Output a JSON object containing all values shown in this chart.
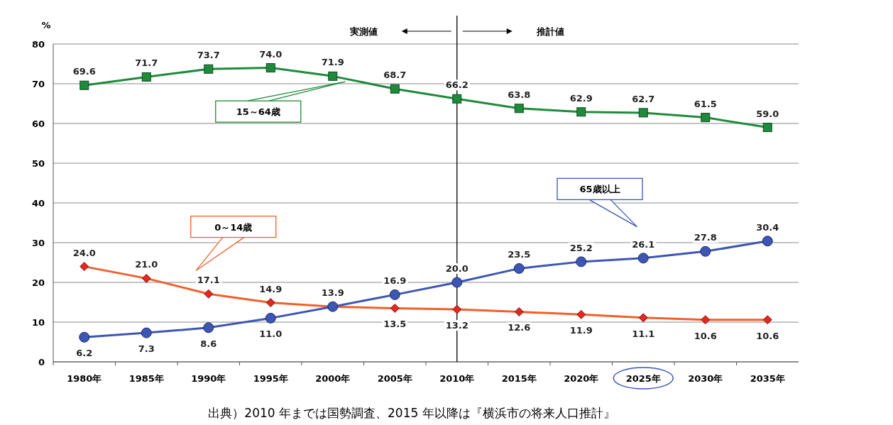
{
  "chart_data": {
    "type": "line",
    "ylabel": "%",
    "categories": [
      "1980年",
      "1985年",
      "1990年",
      "1995年",
      "2000年",
      "2005年",
      "2010年",
      "2015年",
      "2020年",
      "2025年",
      "2030年",
      "2035年"
    ],
    "ylim": [
      0,
      80
    ],
    "yticks": [
      0,
      10,
      20,
      30,
      40,
      50,
      60,
      70,
      80
    ],
    "grid": "y",
    "series": [
      {
        "name": "15～64歳",
        "color": "#1f8a3c",
        "marker": "square",
        "values": [
          69.6,
          71.7,
          73.7,
          74.0,
          71.9,
          68.7,
          66.2,
          63.8,
          62.9,
          62.7,
          61.5,
          59.0
        ],
        "value_labels": [
          "69.6",
          "71.7",
          "73.7",
          "74.0",
          "71.9",
          "68.7",
          "66.2",
          "63.8",
          "62.9",
          "62.7",
          "61.5",
          "59.0"
        ]
      },
      {
        "name": "0～14歳",
        "color": "#f0602a",
        "marker": "diamond",
        "values": [
          24.0,
          21.0,
          17.1,
          14.9,
          13.9,
          13.5,
          13.2,
          12.6,
          11.9,
          11.1,
          10.6,
          10.6
        ],
        "value_labels": [
          "24.0",
          "21.0",
          "17.1",
          "14.9",
          null,
          "13.5",
          "13.2",
          "12.6",
          "11.9",
          "11.1",
          "10.6",
          "10.6"
        ]
      },
      {
        "name": "65歳以上",
        "color": "#3d56b2",
        "marker": "circle",
        "values": [
          6.2,
          7.3,
          8.6,
          11.0,
          13.9,
          16.9,
          20.0,
          23.5,
          25.2,
          26.1,
          27.8,
          30.4
        ],
        "value_labels": [
          "6.2",
          "7.3",
          "8.6",
          "11.0",
          "13.9",
          "16.9",
          "20.0",
          "23.5",
          "25.2",
          "26.1",
          "27.8",
          "30.4"
        ]
      }
    ],
    "ref_lines": [
      {
        "axis": "x",
        "value": "2010年",
        "color": "#000000",
        "line_style": "solid"
      }
    ],
    "annotations": [
      "実測値",
      "推計値",
      "出典）2010 年までは国勢調査、2015 年以降は『横浜市の将来人口推計』"
    ]
  }
}
